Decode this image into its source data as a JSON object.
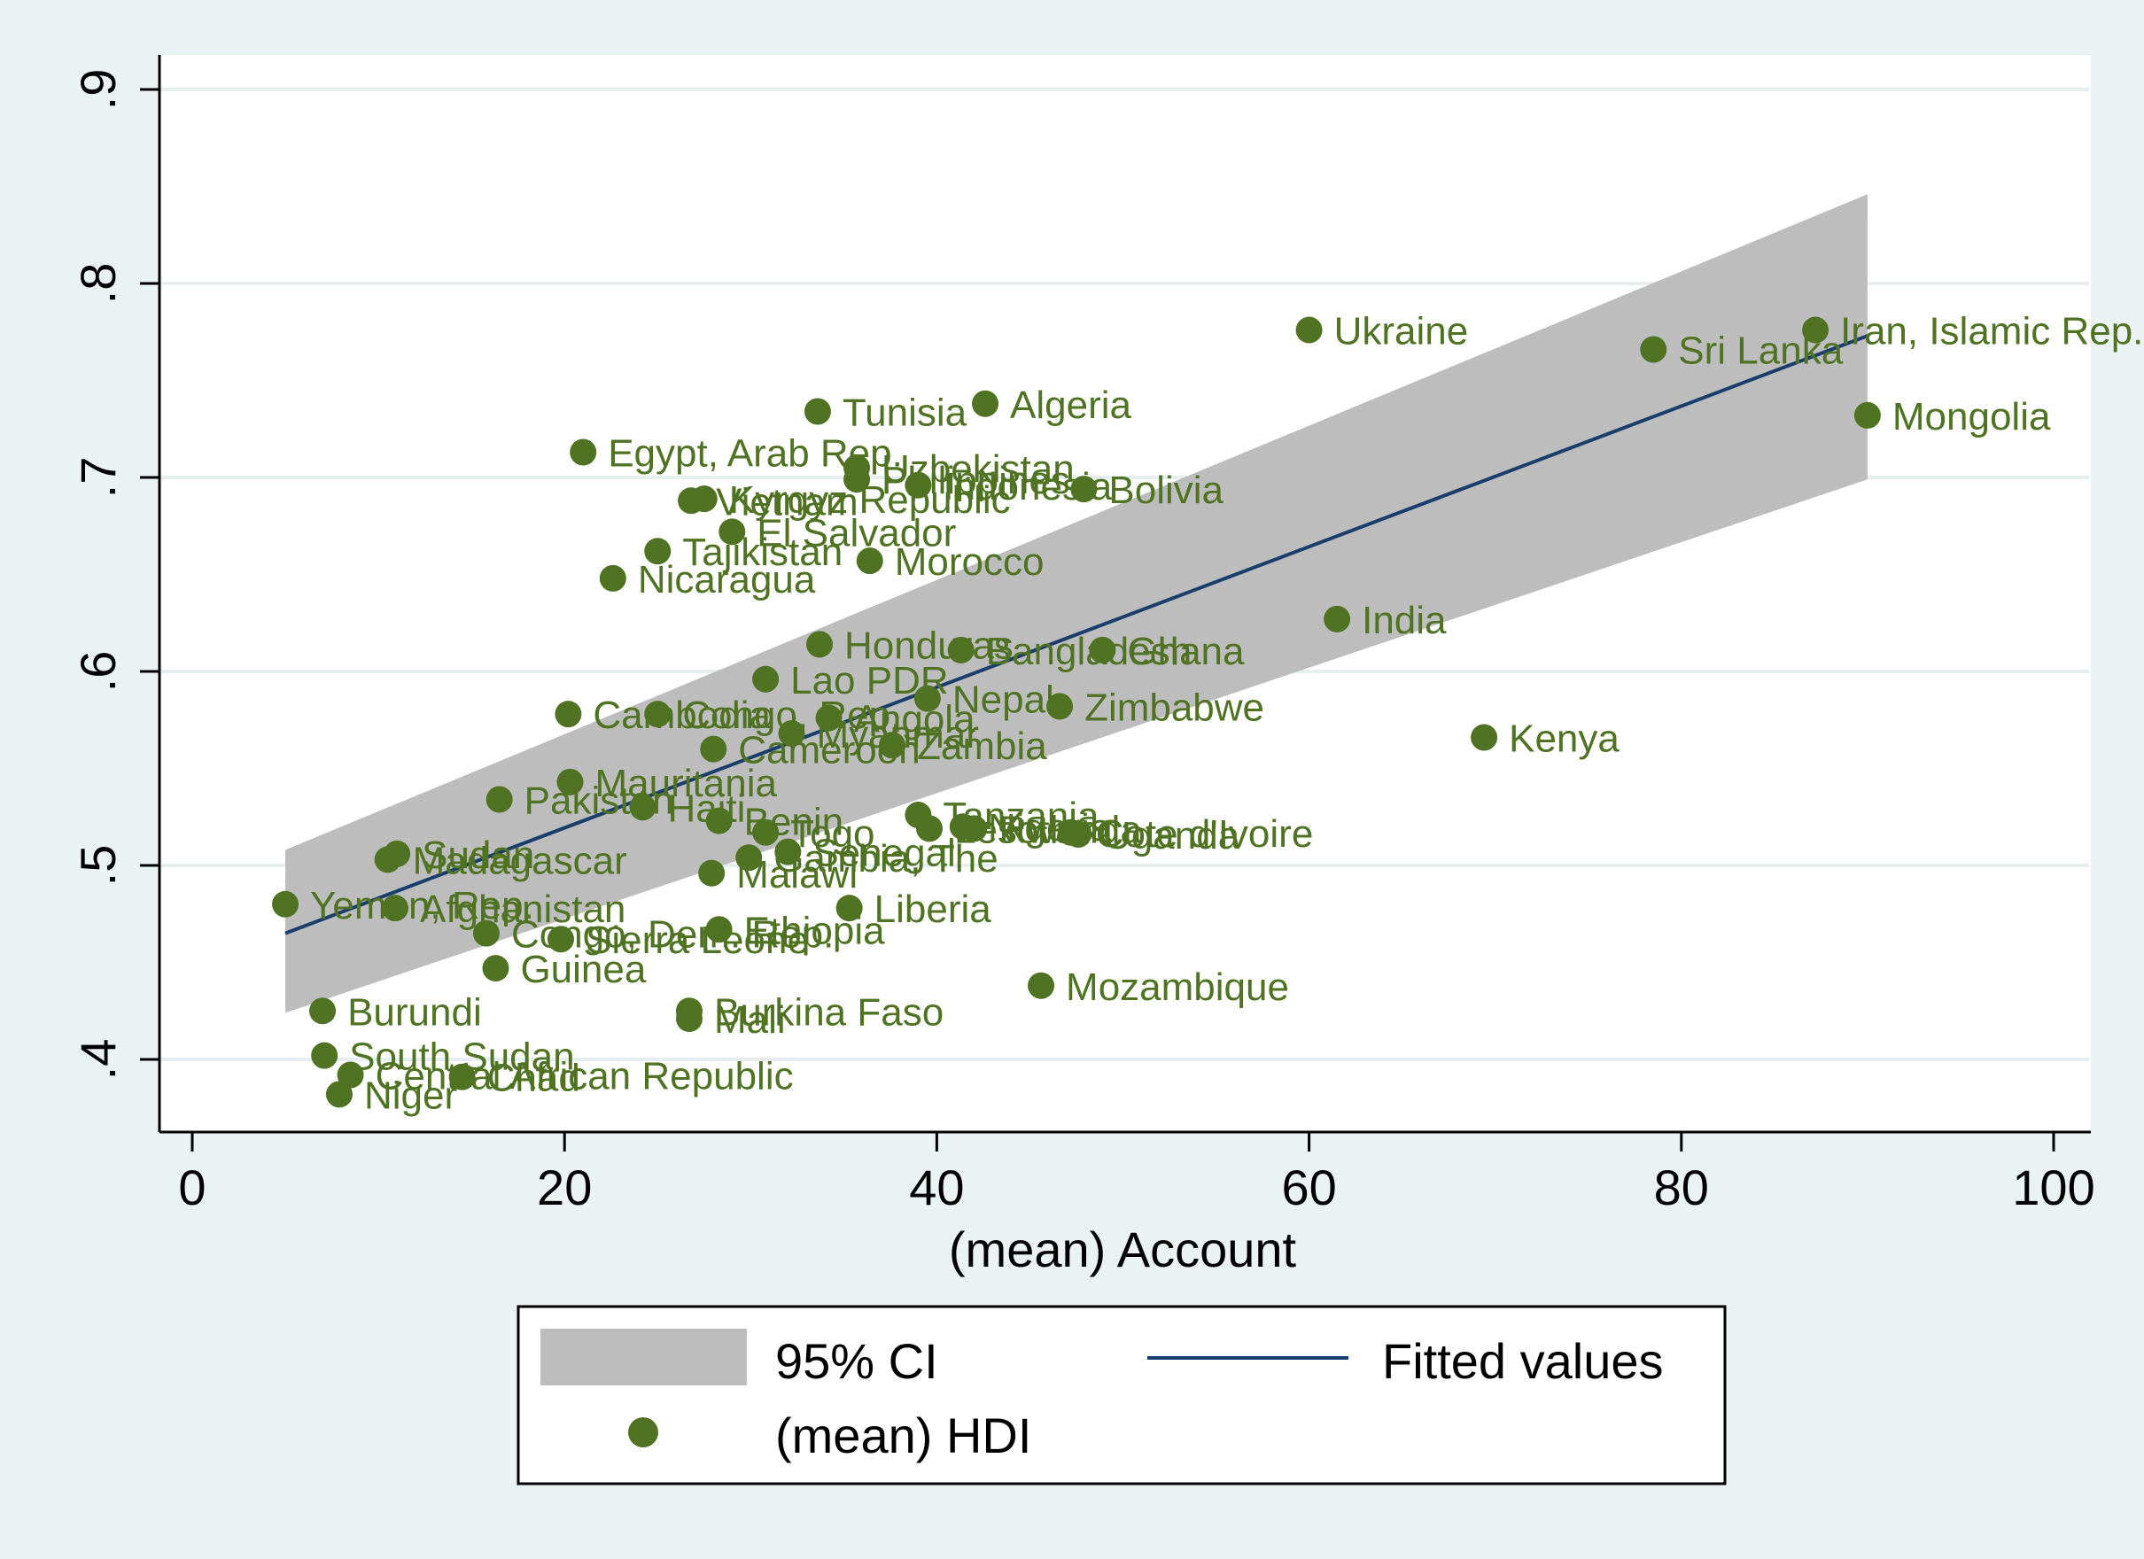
{
  "chart_data": {
    "type": "scatter",
    "title": "",
    "xlabel": "(mean) Account",
    "ylabel": "",
    "xlim": [
      0,
      100
    ],
    "ylim": [
      0.38,
      0.92
    ],
    "x_ticks": [
      0,
      20,
      40,
      60,
      80,
      100
    ],
    "x_tick_labels": [
      "0",
      "20",
      "40",
      "60",
      "80",
      "100"
    ],
    "y_ticks": [
      0.4,
      0.5,
      0.6,
      0.7,
      0.8,
      0.9
    ],
    "y_tick_labels": [
      ".4",
      ".5",
      ".6",
      ".7",
      ".8",
      ".9"
    ],
    "grid": "horizontal",
    "legend_position": "bottom",
    "legend": {
      "ci_label": "95% CI",
      "fit_label": "Fitted values",
      "points_label": "(mean) HDI"
    },
    "colors": {
      "plot_background": "#ffffff",
      "outer_background": "#eaf2f3",
      "points": "#4f7223",
      "fit_line": "#1a3e6b",
      "ci_band": "#bdbdbd"
    },
    "fitted_line": {
      "x": [
        5,
        90
      ],
      "y": [
        0.465,
        0.773
      ]
    },
    "ci_band": {
      "x": [
        5,
        90
      ],
      "lower": [
        0.424,
        0.699
      ],
      "upper": [
        0.508,
        0.846
      ]
    },
    "points": [
      {
        "label": "Iran, Islamic Rep.",
        "x": 87.2,
        "y": 0.776
      },
      {
        "label": "Ukraine",
        "x": 60.0,
        "y": 0.776
      },
      {
        "label": "Sri Lanka",
        "x": 78.5,
        "y": 0.766
      },
      {
        "label": "Mongolia",
        "x": 90.0,
        "y": 0.732
      },
      {
        "label": "Algeria",
        "x": 42.6,
        "y": 0.738
      },
      {
        "label": "Tunisia",
        "x": 33.6,
        "y": 0.734
      },
      {
        "label": "Egypt, Arab Rep.",
        "x": 21.0,
        "y": 0.713
      },
      {
        "label": "Uzbekistan",
        "x": 35.7,
        "y": 0.705
      },
      {
        "label": "Philippines",
        "x": 35.7,
        "y": 0.699
      },
      {
        "label": "Indonesia",
        "x": 39.0,
        "y": 0.696
      },
      {
        "label": "Bolivia",
        "x": 47.9,
        "y": 0.694
      },
      {
        "label": "Kyrgyz Republic",
        "x": 27.5,
        "y": 0.689
      },
      {
        "label": "Vietnam",
        "x": 26.8,
        "y": 0.688
      },
      {
        "label": "El Salvador",
        "x": 29.0,
        "y": 0.672
      },
      {
        "label": "Tajikistan",
        "x": 25.0,
        "y": 0.662
      },
      {
        "label": "Morocco",
        "x": 36.4,
        "y": 0.657
      },
      {
        "label": "Nicaragua",
        "x": 22.6,
        "y": 0.648
      },
      {
        "label": "India",
        "x": 61.5,
        "y": 0.627
      },
      {
        "label": "Honduras",
        "x": 33.7,
        "y": 0.614
      },
      {
        "label": "Bangladesh",
        "x": 41.3,
        "y": 0.611
      },
      {
        "label": "Ghana",
        "x": 48.9,
        "y": 0.611
      },
      {
        "label": "Lao PDR",
        "x": 30.8,
        "y": 0.596
      },
      {
        "label": "Nepal",
        "x": 39.5,
        "y": 0.586
      },
      {
        "label": "Zimbabwe",
        "x": 46.6,
        "y": 0.582
      },
      {
        "label": "Cambodia",
        "x": 20.2,
        "y": 0.578
      },
      {
        "label": "Congo, Rep.",
        "x": 25.0,
        "y": 0.578
      },
      {
        "label": "Angola",
        "x": 34.2,
        "y": 0.576
      },
      {
        "label": "Myanmar",
        "x": 32.2,
        "y": 0.568
      },
      {
        "label": "Kenya",
        "x": 69.4,
        "y": 0.566
      },
      {
        "label": "Zambia",
        "x": 37.6,
        "y": 0.562
      },
      {
        "label": "Cameroon",
        "x": 28.0,
        "y": 0.56
      },
      {
        "label": "Mauritania",
        "x": 20.3,
        "y": 0.543
      },
      {
        "label": "Pakistan",
        "x": 16.5,
        "y": 0.534
      },
      {
        "label": "Haiti",
        "x": 24.2,
        "y": 0.53
      },
      {
        "label": "Tanzania",
        "x": 39.0,
        "y": 0.526
      },
      {
        "label": "Benin",
        "x": 28.3,
        "y": 0.523
      },
      {
        "label": "Nigeria",
        "x": 41.4,
        "y": 0.52
      },
      {
        "label": "Rwanda",
        "x": 42.0,
        "y": 0.519
      },
      {
        "label": "Uganda",
        "x": 47.6,
        "y": 0.516
      },
      {
        "label": "Cote d'Ivoire",
        "x": 47.2,
        "y": 0.517
      },
      {
        "label": "Togo",
        "x": 30.8,
        "y": 0.517
      },
      {
        "label": "Lesotho",
        "x": 39.6,
        "y": 0.519
      },
      {
        "label": "Senegal",
        "x": 32.0,
        "y": 0.507
      },
      {
        "label": "Sudan",
        "x": 11.0,
        "y": 0.506
      },
      {
        "label": "Madagascar",
        "x": 10.5,
        "y": 0.503
      },
      {
        "label": "Malawi",
        "x": 27.9,
        "y": 0.496
      },
      {
        "label": "Gambia, The",
        "x": 29.9,
        "y": 0.504
      },
      {
        "label": "Yemen, Rep.",
        "x": 5.0,
        "y": 0.48
      },
      {
        "label": "Afghanistan",
        "x": 10.9,
        "y": 0.478
      },
      {
        "label": "Liberia",
        "x": 35.3,
        "y": 0.478
      },
      {
        "label": "Ethiopia",
        "x": 28.3,
        "y": 0.467
      },
      {
        "label": "Congo, Dem. Rep.",
        "x": 15.8,
        "y": 0.465
      },
      {
        "label": "Sierra Leone",
        "x": 19.8,
        "y": 0.462
      },
      {
        "label": "Guinea",
        "x": 16.3,
        "y": 0.447
      },
      {
        "label": "Mozambique",
        "x": 45.6,
        "y": 0.438
      },
      {
        "label": "Burundi",
        "x": 7.0,
        "y": 0.425
      },
      {
        "label": "Burkina Faso",
        "x": 26.7,
        "y": 0.425
      },
      {
        "label": "Mali",
        "x": 26.7,
        "y": 0.421
      },
      {
        "label": "South Sudan",
        "x": 7.1,
        "y": 0.402
      },
      {
        "label": "Central African Republic",
        "x": 8.5,
        "y": 0.392
      },
      {
        "label": "Chad",
        "x": 14.5,
        "y": 0.391
      },
      {
        "label": "Niger",
        "x": 7.9,
        "y": 0.382
      }
    ]
  }
}
